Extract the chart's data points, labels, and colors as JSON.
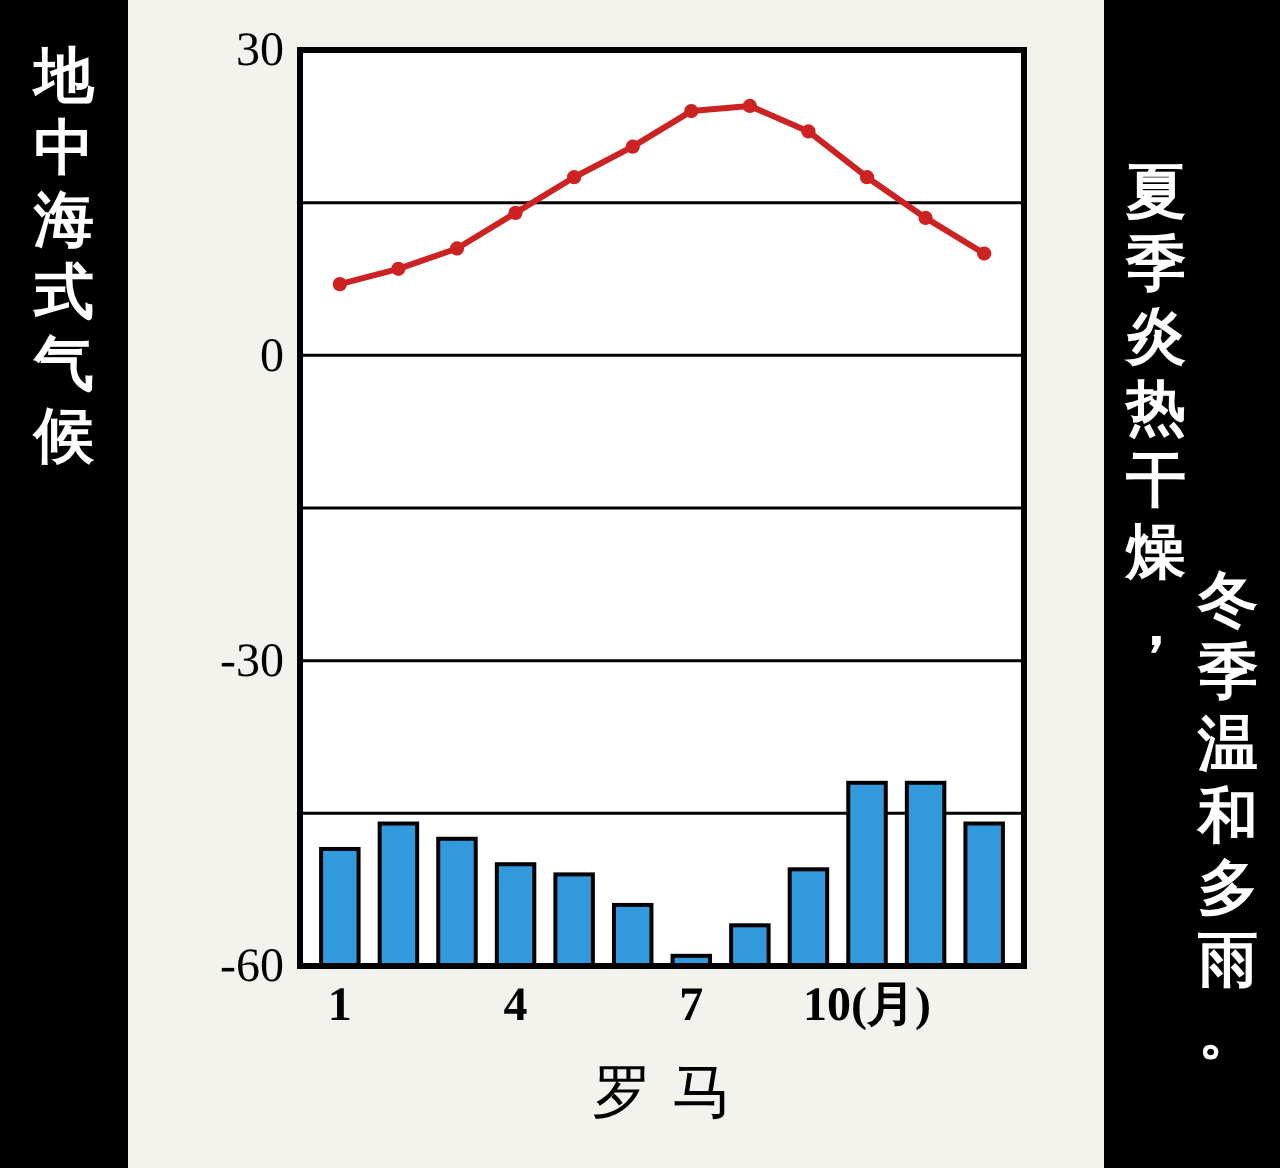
{
  "chart_data": {
    "type": "bar",
    "title": "地中海式气候",
    "xlabel": "罗 马",
    "annotations": [
      "夏季炎热干燥，冬季温和多雨。"
    ],
    "categories": [
      "1",
      null,
      null,
      "4",
      null,
      null,
      "7",
      null,
      null,
      "10(月)",
      null,
      null
    ],
    "ylim": [
      -60,
      30
    ],
    "yticks": [
      30,
      {
        "value": 15,
        "label": null
      },
      0,
      {
        "value": -15,
        "label": null
      },
      -30,
      {
        "value": -45,
        "label": null
      },
      -60
    ],
    "grid": "y",
    "marker": "circle",
    "series": [
      {
        "color": "#3399dd",
        "base": [
          -60,
          -60,
          -60,
          -60,
          -60,
          -60,
          -60,
          -60,
          -60,
          -60,
          -60,
          -60
        ],
        "values": [
          11.5,
          14,
          12.5,
          10,
          9,
          6,
          1,
          4,
          9.5,
          18,
          18,
          14
        ]
      },
      {
        "type": "line",
        "color": "#cc2222",
        "values": [
          7,
          8.5,
          10.5,
          14,
          17.5,
          20.5,
          24,
          24.5,
          22,
          17.5,
          13.5,
          10
        ]
      }
    ]
  }
}
